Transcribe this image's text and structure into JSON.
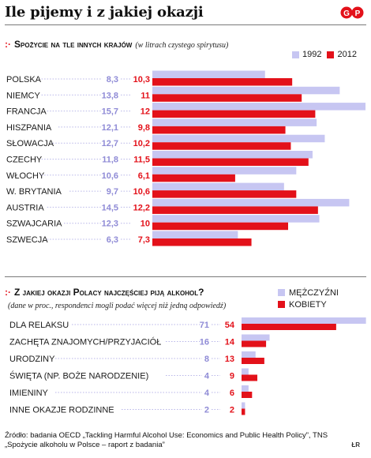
{
  "title": "Ile pijemy i z jakiej okazji",
  "colors": {
    "light": "#c7c6f2",
    "red": "#e3111a",
    "dots": "#b8b6e8",
    "light_value": "#8f8bd6"
  },
  "section1": {
    "heading": "Spożycie na tle innych krajów",
    "subheading": "(w litrach czystego spirytusu)",
    "legend": [
      "1992",
      "2012"
    ]
  },
  "section2": {
    "heading": "Z jakiej okazji Polacy najczęściej piją alkohol?",
    "note": "(dane w proc., respondenci mogli podać więcej niż jedną odpowiedź)",
    "legend": [
      "MĘŻCZYŹNI",
      "KOBIETY"
    ]
  },
  "source": "Źródło: badania OECD „Tackling Harmful Alcohol Use: Economics and Public Health Policy”, TNS „Spożycie alkoholu w Polsce – raport z badania”",
  "credit": "ŁR",
  "chart_data": [
    {
      "type": "bar",
      "title": "Spożycie na tle innych krajów",
      "categories": [
        "POLSKA",
        "NIEMCY",
        "FRANCJA",
        "HISZPANIA",
        "SŁOWACJA",
        "CZECHY",
        "WŁOCHY",
        "W. BRYTANIA",
        "AUSTRIA",
        "SZWAJCARIA",
        "SZWECJA"
      ],
      "series": [
        {
          "name": "1992",
          "values": [
            8.3,
            13.8,
            15.7,
            12.1,
            12.7,
            11.8,
            10.6,
            9.7,
            14.5,
            12.3,
            6.3
          ],
          "labels": [
            "8,3",
            "13,8",
            "15,7",
            "12,1",
            "12,7",
            "11,8",
            "10,6",
            "9,7",
            "14,5",
            "12,3",
            "6,3"
          ]
        },
        {
          "name": "2012",
          "values": [
            10.3,
            11,
            12,
            9.8,
            10.2,
            11.5,
            6.1,
            10.6,
            12.2,
            10,
            7.3
          ],
          "labels": [
            "10,3",
            "11",
            "12",
            "9,8",
            "10,2",
            "11,5",
            "6,1",
            "10,6",
            "12,2",
            "10",
            "7,3"
          ]
        }
      ]
    },
    {
      "type": "bar",
      "title": "Z jakiej okazji Polacy najczęściej piją alkohol?",
      "categories": [
        "DLA RELAKSU",
        "ZACHĘTA ZNAJOMYCH/PRZYJACIÓŁ",
        "URODZINY",
        "ŚWIĘTA (NP. BOŻE NARODZENIE)",
        "IMIENINY",
        "INNE OKAZJE RODZINNE"
      ],
      "series": [
        {
          "name": "MĘŻCZYŹNI",
          "values": [
            71,
            16,
            8,
            4,
            4,
            2
          ]
        },
        {
          "name": "KOBIETY",
          "values": [
            54,
            14,
            13,
            9,
            6,
            2
          ]
        }
      ]
    }
  ]
}
